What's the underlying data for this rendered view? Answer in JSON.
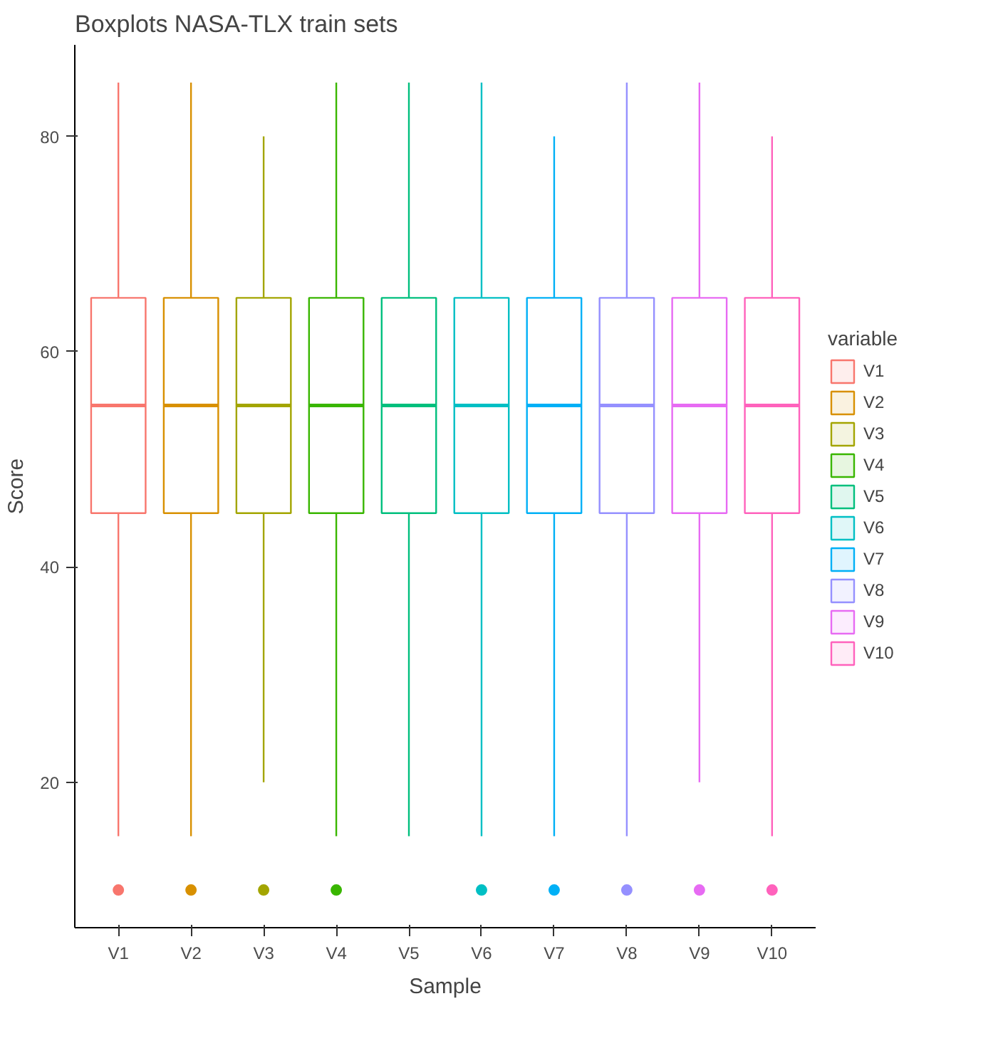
{
  "chart_data": {
    "type": "box",
    "title": "Boxplots NASA-TLX train sets",
    "xlabel": "Sample",
    "ylabel": "Score",
    "legend_title": "variable",
    "legend": "right",
    "grid": false,
    "categories": [
      "V1",
      "V2",
      "V3",
      "V4",
      "V5",
      "V6",
      "V7",
      "V8",
      "V9",
      "V10"
    ],
    "series": [
      {
        "name": "V1",
        "color": "#f8766d",
        "boxes": [
          {
            "low": 15,
            "q1": 45,
            "median": 55,
            "q3": 65,
            "high": 85,
            "outliers": [
              10
            ]
          },
          null,
          null,
          null,
          null,
          null,
          null,
          null,
          null,
          null
        ]
      },
      {
        "name": "V2",
        "color": "#d89000",
        "boxes": [
          null,
          {
            "low": 15,
            "q1": 45,
            "median": 55,
            "q3": 65,
            "high": 85,
            "outliers": [
              10
            ]
          },
          null,
          null,
          null,
          null,
          null,
          null,
          null,
          null
        ]
      },
      {
        "name": "V3",
        "color": "#a3a500",
        "boxes": [
          null,
          null,
          {
            "low": 20,
            "q1": 45,
            "median": 55,
            "q3": 65,
            "high": 80,
            "outliers": [
              10
            ]
          },
          null,
          null,
          null,
          null,
          null,
          null,
          null
        ]
      },
      {
        "name": "V4",
        "color": "#39b600",
        "boxes": [
          null,
          null,
          null,
          {
            "low": 15,
            "q1": 45,
            "median": 55,
            "q3": 65,
            "high": 85,
            "outliers": [
              10
            ]
          },
          null,
          null,
          null,
          null,
          null,
          null
        ]
      },
      {
        "name": "V5",
        "color": "#00bf7d",
        "boxes": [
          null,
          null,
          null,
          null,
          {
            "low": 15,
            "q1": 45,
            "median": 55,
            "q3": 65,
            "high": 85
          },
          null,
          null,
          null,
          null,
          null
        ]
      },
      {
        "name": "V6",
        "color": "#00bfc4",
        "boxes": [
          null,
          null,
          null,
          null,
          null,
          {
            "low": 15,
            "q1": 45,
            "median": 55,
            "q3": 65,
            "high": 85,
            "outliers": [
              10
            ]
          },
          null,
          null,
          null,
          null
        ]
      },
      {
        "name": "V7",
        "color": "#00b0f6",
        "boxes": [
          null,
          null,
          null,
          null,
          null,
          null,
          {
            "low": 15,
            "q1": 45,
            "median": 55,
            "q3": 65,
            "high": 80,
            "outliers": [
              10
            ]
          },
          null,
          null,
          null
        ]
      },
      {
        "name": "V8",
        "color": "#9590ff",
        "boxes": [
          null,
          null,
          null,
          null,
          null,
          null,
          null,
          {
            "low": 15,
            "q1": 45,
            "median": 55,
            "q3": 65,
            "high": 85,
            "outliers": [
              10
            ]
          },
          null,
          null
        ]
      },
      {
        "name": "V9",
        "color": "#e76bf3",
        "boxes": [
          null,
          null,
          null,
          null,
          null,
          null,
          null,
          null,
          {
            "low": 20,
            "q1": 45,
            "median": 55,
            "q3": 65,
            "high": 85,
            "outliers": [
              10
            ]
          },
          null
        ]
      },
      {
        "name": "V10",
        "color": "#ff62bc",
        "boxes": [
          null,
          null,
          null,
          null,
          null,
          null,
          null,
          null,
          null,
          {
            "low": 15,
            "q1": 45,
            "median": 55,
            "q3": 65,
            "high": 80,
            "outliers": [
              10
            ]
          }
        ]
      }
    ],
    "ylim": [
      6.5,
      88.5
    ],
    "yticks": [
      20,
      40,
      60,
      80
    ]
  }
}
